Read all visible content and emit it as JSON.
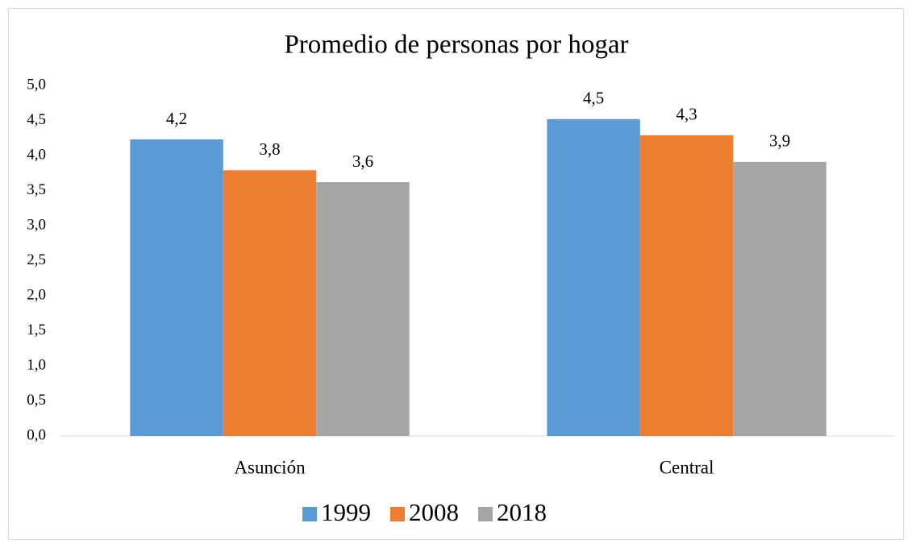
{
  "chart_data": {
    "type": "bar",
    "title": "Promedio de personas por hogar",
    "categories": [
      "Asunción",
      "Central"
    ],
    "series": [
      {
        "name": "1999",
        "color": "#5b9bd5",
        "values": [
          4.23,
          4.52
        ],
        "value_labels": [
          "4,2",
          "4,5"
        ]
      },
      {
        "name": "2008",
        "color": "#ed7d31",
        "values": [
          3.79,
          4.29
        ],
        "value_labels": [
          "3,8",
          "4,3"
        ]
      },
      {
        "name": "2018",
        "color": "#a5a5a5",
        "values": [
          3.62,
          3.91
        ],
        "value_labels": [
          "3,6",
          "3,9"
        ]
      }
    ],
    "ylim": [
      0,
      5
    ],
    "yticks": [
      {
        "value": 0,
        "label": "0,0"
      },
      {
        "value": 0.5,
        "label": "0,5"
      },
      {
        "value": 1,
        "label": "1,0"
      },
      {
        "value": 1.5,
        "label": "1,5"
      },
      {
        "value": 2,
        "label": "2,0"
      },
      {
        "value": 2.5,
        "label": "2,5"
      },
      {
        "value": 3,
        "label": "3,0"
      },
      {
        "value": 3.5,
        "label": "3,5"
      },
      {
        "value": 4,
        "label": "4,0"
      },
      {
        "value": 4.5,
        "label": "4,5"
      },
      {
        "value": 5,
        "label": "5,0"
      }
    ],
    "grid": false,
    "legend": "bottom"
  }
}
